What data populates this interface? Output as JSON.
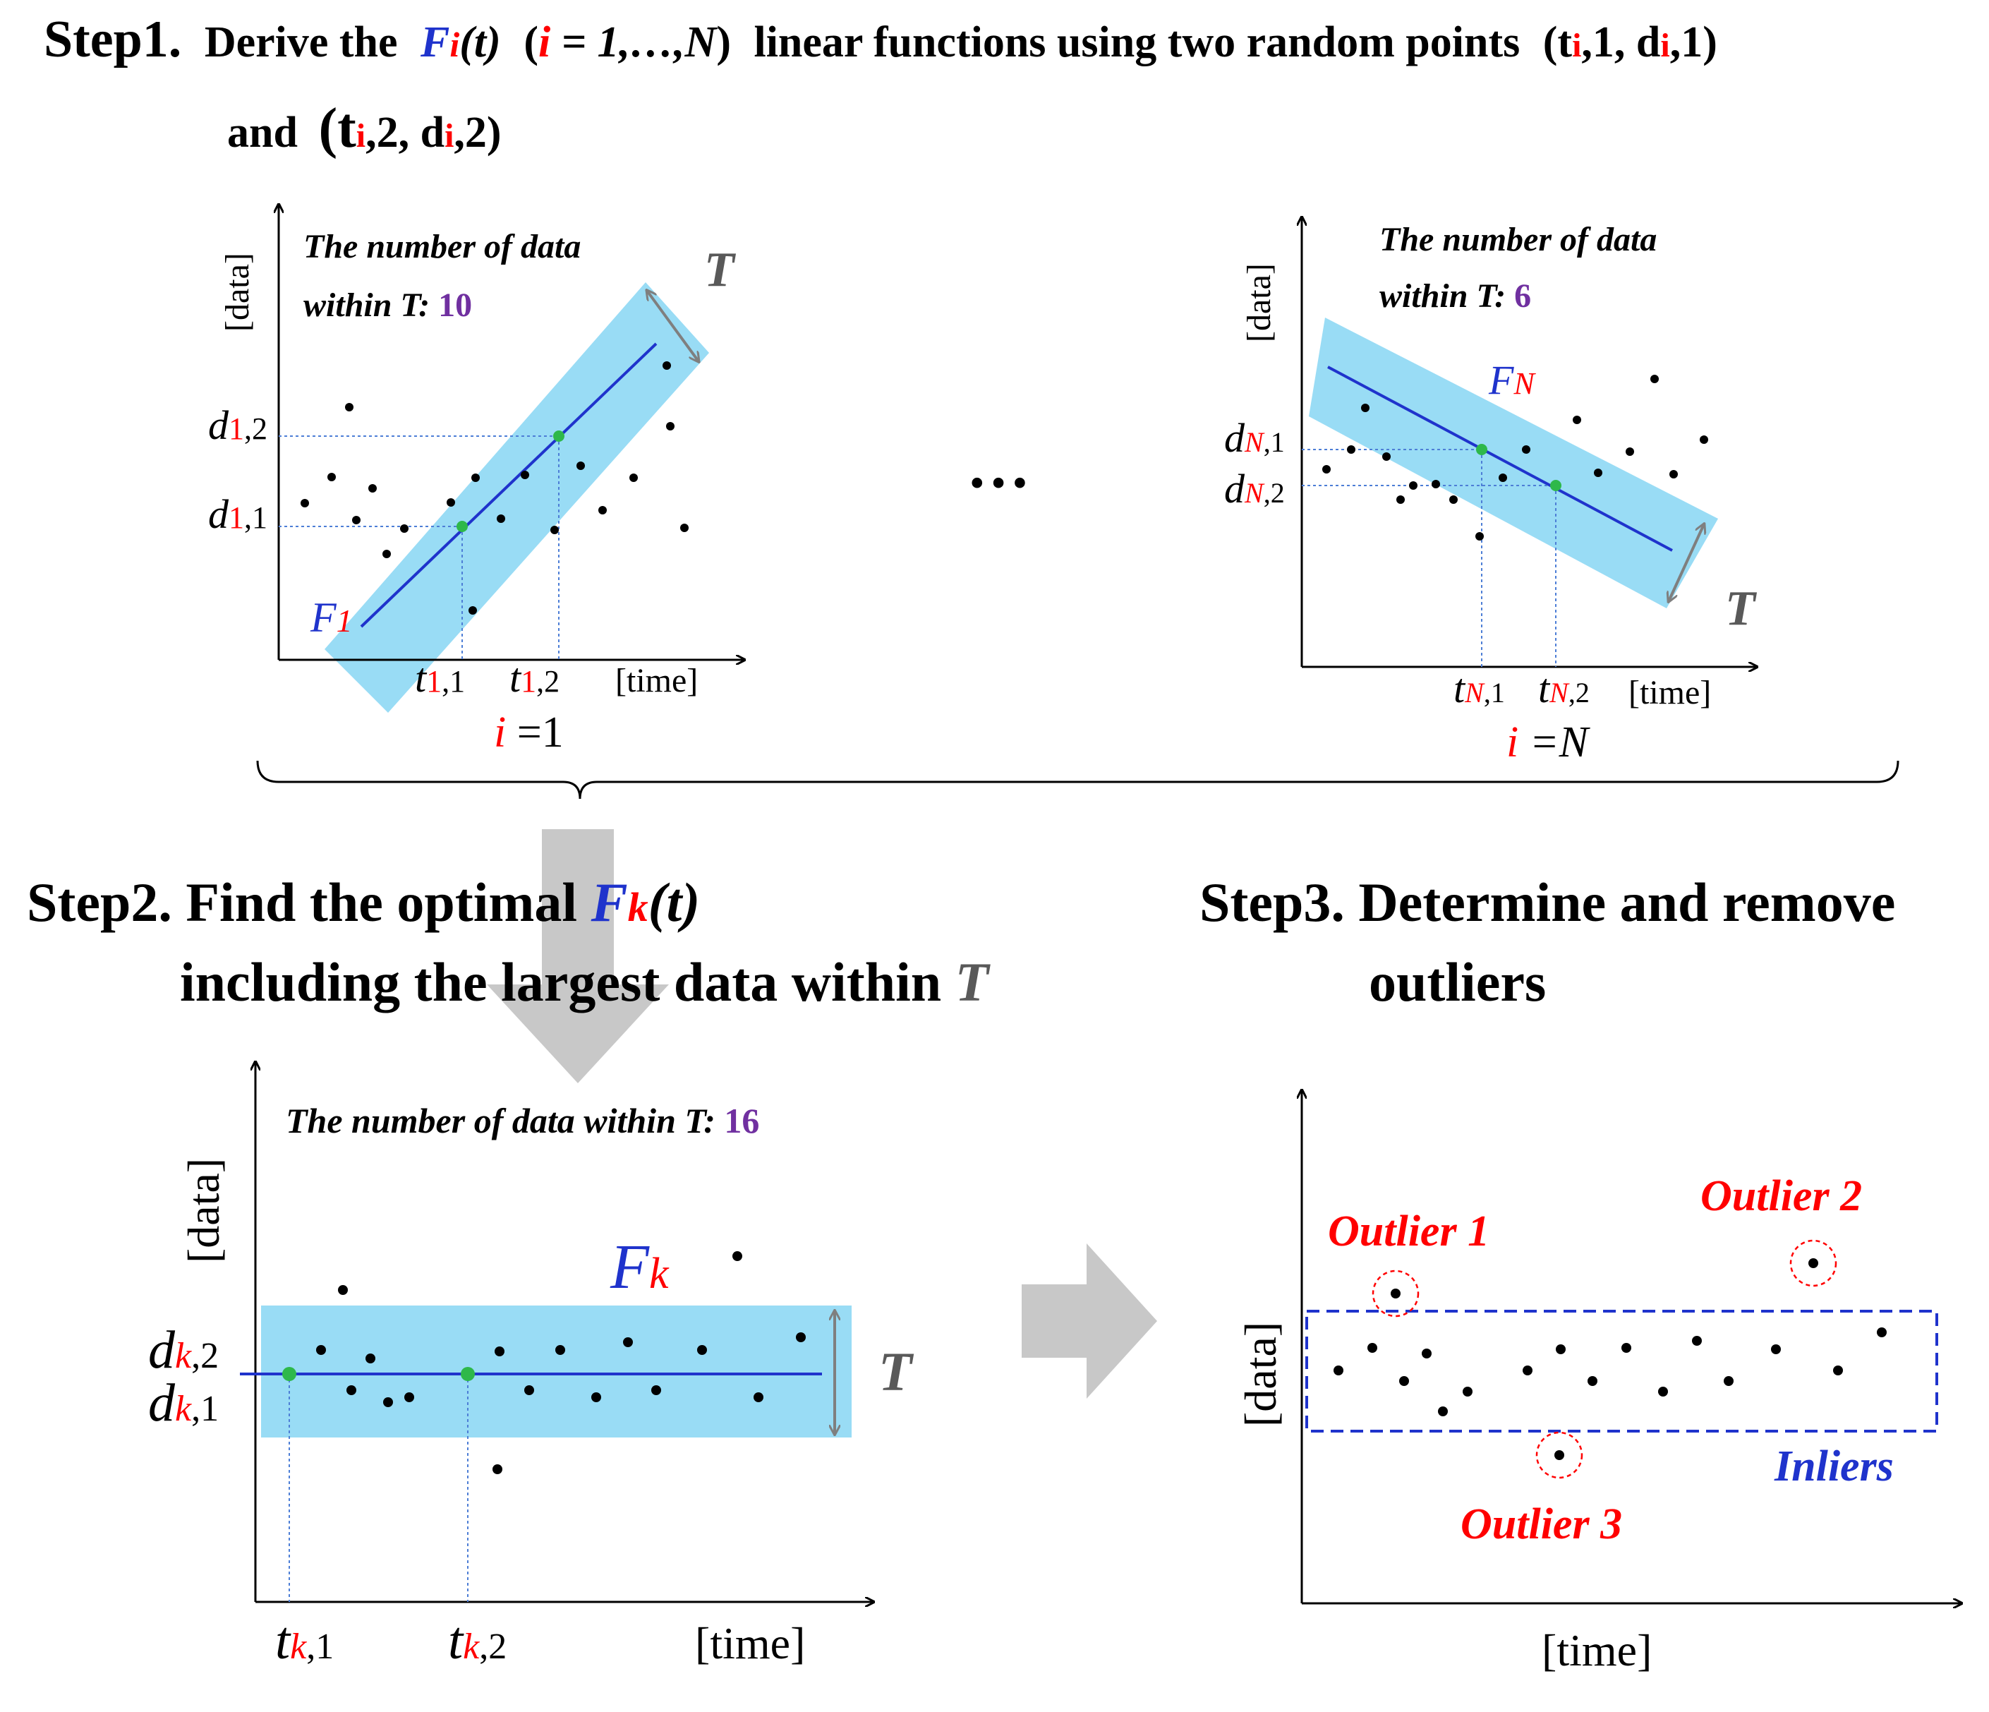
{
  "colors": {
    "red": "#ff0000",
    "blue": "#1f33cc",
    "purple": "#7030a0",
    "band": "#99dcf5",
    "green": "#2eb84a",
    "gray": "#c8c8c8",
    "axis": "#000000",
    "tarrow": "#7f7f7f"
  },
  "step1": {
    "label": "Step1.",
    "pre": "Derive the",
    "F": "F",
    "i": "i",
    "ofT": "(t)",
    "paren_open": "(",
    "i2": "i",
    "range": " = 1,…,N",
    "paren_close": ")",
    "post": "linear functions using two random points",
    "p1_open": "(t",
    "p1_i": "i",
    "p1_mid": ",1, d",
    "p1_i2": "i",
    "p1_end": ",1)",
    "line2": "and",
    "p2_open": "(t",
    "p2_i": "i",
    "p2_mid": ",2, d",
    "p2_i2": "i",
    "p2_end": ",2)"
  },
  "plot1": {
    "count_line1": "The number of data",
    "count_line2": "within T: ",
    "count_value": "10",
    "ylabel": "[data]",
    "xlabel": "[time]",
    "T": "T",
    "F_label": "F",
    "F_sub": "1",
    "d12": "d",
    "d12_sub": "1",
    ",2": ",2",
    "d11": "d",
    "d11_sub": "1",
    ",1": ",1",
    "t11": "t",
    "t11_sub": "1",
    "t11_suf": ",1",
    "t12": "t",
    "t12_sub": "1",
    "t12_suf": ",2",
    "iter_i": "i",
    "iter_eq": " =1"
  },
  "ellipsis": "…",
  "plotN": {
    "count_line1": "The number of data",
    "count_line2": "within T: ",
    "count_value": "6",
    "ylabel": "[data]",
    "xlabel": "[time]",
    "T": "T",
    "F_label": "F",
    "F_sub": "N",
    "dN1": "d",
    "dN1_sub": "N",
    "dN1_suf": ",1",
    "dN2": "d",
    "dN2_sub": "N",
    "dN2_suf": ",2",
    "tN1": "t",
    "tN1_sub": "N",
    "tN1_suf": ",1",
    "tN2": "t",
    "tN2_sub": "N",
    "tN2_suf": ",2",
    "iter_i": "i",
    "iter_eq": " =N"
  },
  "step2": {
    "label_pre": "Step2. Find the optimal ",
    "F": "F",
    "k": "k",
    "ofT": "(t)",
    "line2": "including the largest data within ",
    "T": "T"
  },
  "plotK": {
    "count_text": "The number of data within T: ",
    "count_value": "16",
    "ylabel": "[data]",
    "xlabel": "[time]",
    "T": "T",
    "F_label": "F",
    "F_sub": "k",
    "dk2": "d",
    "dk2_sub": "k",
    "dk2_suf": ",2",
    "dk1": "d",
    "dk1_sub": "k",
    "dk1_suf": ",1",
    "tk1": "t",
    "tk1_sub": "k",
    "tk1_suf": ",1",
    "tk2": "t",
    "tk2_sub": "k",
    "tk2_suf": ",2"
  },
  "step3": {
    "line1": "Step3. Determine and remove",
    "line2": "outliers"
  },
  "plot3": {
    "ylabel": "[data]",
    "xlabel": "[time]",
    "outlier1": "Outlier 1",
    "outlier2": "Outlier 2",
    "outlier3": "Outlier 3",
    "inliers": "Inliers"
  }
}
